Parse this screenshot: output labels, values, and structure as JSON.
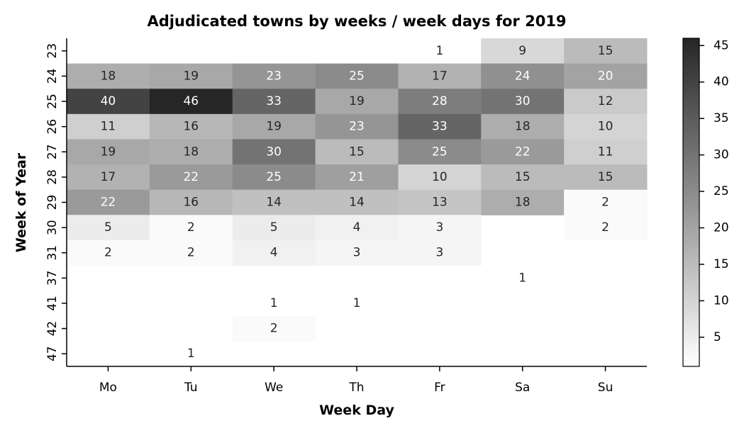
{
  "chart_data": {
    "type": "heatmap",
    "title": "Adjudicated towns by weeks / week days for 2019",
    "xlabel": "Week Day",
    "ylabel": "Week of Year",
    "x_categories": [
      "Mo",
      "Tu",
      "We",
      "Th",
      "Fr",
      "Sa",
      "Su"
    ],
    "y_categories": [
      "23",
      "24",
      "25",
      "26",
      "27",
      "28",
      "29",
      "30",
      "31",
      "37",
      "41",
      "42",
      "47"
    ],
    "values": [
      [
        null,
        null,
        null,
        null,
        1,
        9,
        15
      ],
      [
        18,
        19,
        23,
        25,
        17,
        24,
        20
      ],
      [
        40,
        46,
        33,
        19,
        28,
        30,
        12
      ],
      [
        11,
        16,
        19,
        23,
        33,
        18,
        10
      ],
      [
        19,
        18,
        30,
        15,
        25,
        22,
        11
      ],
      [
        17,
        22,
        25,
        21,
        10,
        15,
        15
      ],
      [
        22,
        16,
        14,
        14,
        13,
        18,
        2
      ],
      [
        5,
        2,
        5,
        4,
        3,
        null,
        2
      ],
      [
        2,
        2,
        4,
        3,
        3,
        null,
        null
      ],
      [
        null,
        null,
        null,
        null,
        null,
        1,
        null
      ],
      [
        null,
        null,
        1,
        1,
        null,
        null,
        null
      ],
      [
        null,
        null,
        2,
        null,
        null,
        null,
        null
      ],
      [
        null,
        1,
        null,
        null,
        null,
        null,
        null
      ]
    ],
    "value_range": [
      1,
      46
    ],
    "colormap": {
      "low": "#ffffff",
      "high": "#262626"
    },
    "colorbar": {
      "ticks": [
        5,
        10,
        15,
        20,
        25,
        30,
        35,
        40,
        45
      ],
      "range": [
        1,
        46
      ]
    },
    "grid": false
  }
}
